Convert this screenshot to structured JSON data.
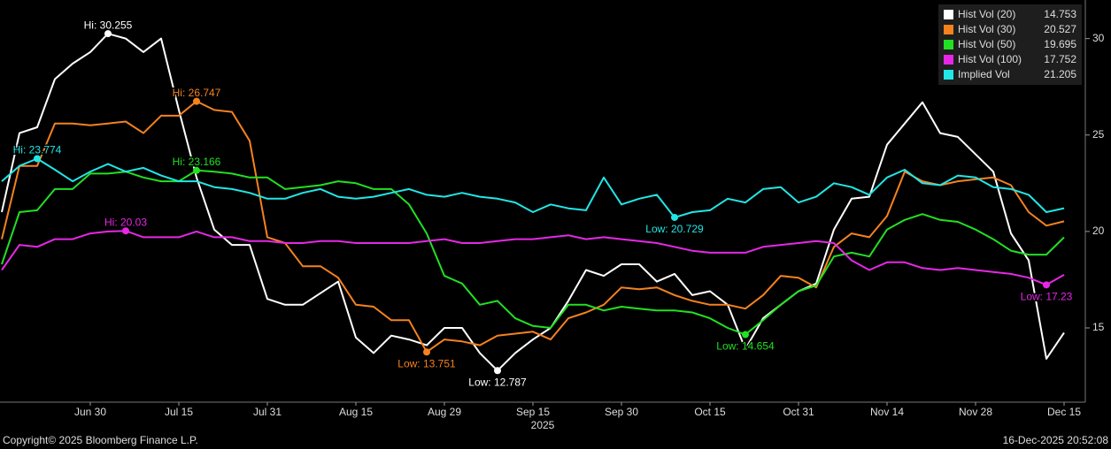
{
  "chart_data": {
    "type": "line",
    "categories": [
      null,
      null,
      null,
      null,
      null,
      "Jun 30",
      null,
      null,
      null,
      null,
      "Jul 15",
      null,
      null,
      null,
      null,
      "Jul 31",
      null,
      null,
      null,
      null,
      "Aug 15",
      null,
      null,
      null,
      null,
      "Aug 29",
      null,
      null,
      null,
      null,
      "Sep 15",
      null,
      null,
      null,
      null,
      "Sep 30",
      null,
      null,
      null,
      null,
      "Oct 15",
      null,
      null,
      null,
      null,
      "Oct 31",
      null,
      null,
      null,
      null,
      "Nov 14",
      null,
      null,
      null,
      null,
      "Nov 28",
      null,
      null,
      null,
      null,
      "Dec 15"
    ],
    "x_year_label": "2025",
    "ylim": [
      11.15,
      32.0
    ],
    "yticks": [
      15,
      20,
      25,
      30
    ],
    "legend": "top-right",
    "series": [
      {
        "name": "Hist Vol (20)",
        "color": "#ffffff",
        "values": [
          21.0,
          25.1,
          25.4,
          27.9,
          28.7,
          29.3,
          30.255,
          30.0,
          29.3,
          30.0,
          26.3,
          22.8,
          20.1,
          19.3,
          19.3,
          16.5,
          16.2,
          16.2,
          16.8,
          17.4,
          14.5,
          13.7,
          14.6,
          14.4,
          14.1,
          15.0,
          15.0,
          13.7,
          12.787,
          13.7,
          14.4,
          15.0,
          16.4,
          18.0,
          17.7,
          18.3,
          18.3,
          17.4,
          17.8,
          16.7,
          16.9,
          16.2,
          13.9,
          15.5,
          16.2,
          16.9,
          17.3,
          20.1,
          21.7,
          21.8,
          24.5,
          25.6,
          26.7,
          25.1,
          24.9,
          24.0,
          23.1,
          19.9,
          18.5,
          13.4,
          14.753
        ],
        "value_labels": [
          null,
          null,
          null,
          null,
          null,
          null,
          "Hi: 30.255",
          null,
          null,
          null,
          null,
          null,
          null,
          null,
          null,
          null,
          null,
          null,
          null,
          null,
          null,
          null,
          null,
          null,
          null,
          null,
          null,
          null,
          "Low: 12.787",
          null,
          null,
          null,
          null,
          null,
          null,
          null,
          null,
          null,
          null,
          null,
          null,
          null,
          null,
          null,
          null,
          null,
          null,
          null,
          null,
          null,
          null,
          null,
          null,
          null,
          null,
          null,
          null,
          null,
          null,
          null,
          null
        ]
      },
      {
        "name": "Hist Vol (30)",
        "color": "#f5821f",
        "values": [
          19.6,
          23.4,
          23.4,
          25.6,
          25.6,
          25.5,
          25.6,
          25.7,
          25.1,
          26.0,
          26.0,
          26.747,
          26.3,
          26.2,
          24.7,
          19.7,
          19.4,
          18.2,
          18.2,
          17.6,
          16.2,
          16.1,
          15.4,
          15.4,
          13.751,
          14.4,
          14.3,
          14.1,
          14.6,
          14.7,
          14.8,
          14.4,
          15.5,
          15.8,
          16.2,
          17.1,
          17.0,
          17.1,
          16.7,
          16.4,
          16.2,
          16.2,
          16.0,
          16.7,
          17.7,
          17.6,
          17.1,
          19.2,
          19.9,
          19.7,
          20.8,
          23.1,
          22.6,
          22.4,
          22.6,
          22.7,
          22.8,
          22.4,
          21.0,
          20.3,
          20.527
        ],
        "value_labels": [
          null,
          null,
          null,
          null,
          null,
          null,
          null,
          null,
          null,
          null,
          null,
          "Hi: 26.747",
          null,
          null,
          null,
          null,
          null,
          null,
          null,
          null,
          null,
          null,
          null,
          null,
          "Low: 13.751",
          null,
          null,
          null,
          null,
          null,
          null,
          null,
          null,
          null,
          null,
          null,
          null,
          null,
          null,
          null,
          null,
          null,
          null,
          null,
          null,
          null,
          null,
          null,
          null,
          null,
          null,
          null,
          null,
          null,
          null,
          null,
          null,
          null,
          null,
          null,
          null
        ]
      },
      {
        "name": "Hist Vol (50)",
        "color": "#22e022",
        "values": [
          18.3,
          21.0,
          21.1,
          22.2,
          22.2,
          23.0,
          23.0,
          23.1,
          22.8,
          22.6,
          22.6,
          23.166,
          23.1,
          23.0,
          22.8,
          22.8,
          22.2,
          22.3,
          22.4,
          22.6,
          22.5,
          22.2,
          22.2,
          21.4,
          19.9,
          17.7,
          17.3,
          16.2,
          16.4,
          15.5,
          15.1,
          15.0,
          16.2,
          16.2,
          15.9,
          16.1,
          16.0,
          15.9,
          15.9,
          15.8,
          15.5,
          15.0,
          14.654,
          15.4,
          16.2,
          16.9,
          17.2,
          18.7,
          18.9,
          18.7,
          20.1,
          20.6,
          20.9,
          20.6,
          20.5,
          20.1,
          19.6,
          19.0,
          18.8,
          18.8,
          19.695
        ],
        "value_labels": [
          null,
          null,
          null,
          null,
          null,
          null,
          null,
          null,
          null,
          null,
          null,
          "Hi: 23.166",
          null,
          null,
          null,
          null,
          null,
          null,
          null,
          null,
          null,
          null,
          null,
          null,
          null,
          null,
          null,
          null,
          null,
          null,
          null,
          null,
          null,
          null,
          null,
          null,
          null,
          null,
          null,
          null,
          null,
          null,
          "Low: 14.654",
          null,
          null,
          null,
          null,
          null,
          null,
          null,
          null,
          null,
          null,
          null,
          null,
          null,
          null,
          null,
          null,
          null,
          null
        ]
      },
      {
        "name": "Hist Vol (100)",
        "color": "#e628e6",
        "values": [
          18.0,
          19.3,
          19.2,
          19.6,
          19.6,
          19.9,
          20.0,
          20.03,
          19.7,
          19.7,
          19.7,
          20.0,
          19.7,
          19.7,
          19.5,
          19.5,
          19.4,
          19.4,
          19.5,
          19.5,
          19.4,
          19.4,
          19.4,
          19.4,
          19.5,
          19.6,
          19.4,
          19.4,
          19.5,
          19.6,
          19.6,
          19.7,
          19.8,
          19.6,
          19.7,
          19.6,
          19.5,
          19.4,
          19.2,
          19.0,
          18.9,
          18.9,
          18.9,
          19.2,
          19.3,
          19.4,
          19.5,
          19.4,
          18.5,
          18.0,
          18.4,
          18.4,
          18.1,
          18.0,
          18.1,
          18.0,
          17.9,
          17.8,
          17.6,
          17.23,
          17.752
        ],
        "value_labels": [
          null,
          null,
          null,
          null,
          null,
          null,
          null,
          "Hi: 20.03",
          null,
          null,
          null,
          null,
          null,
          null,
          null,
          null,
          null,
          null,
          null,
          null,
          null,
          null,
          null,
          null,
          null,
          null,
          null,
          null,
          null,
          null,
          null,
          null,
          null,
          null,
          null,
          null,
          null,
          null,
          null,
          null,
          null,
          null,
          null,
          null,
          null,
          null,
          null,
          null,
          null,
          null,
          null,
          null,
          null,
          null,
          null,
          null,
          null,
          null,
          null,
          "Low: 17.23",
          null
        ]
      },
      {
        "name": "Implied Vol",
        "color": "#22e6e6",
        "values": [
          22.6,
          23.4,
          23.774,
          23.2,
          22.6,
          23.1,
          23.5,
          23.1,
          23.3,
          22.9,
          22.6,
          22.6,
          22.3,
          22.2,
          22.0,
          21.7,
          21.7,
          22.0,
          22.2,
          21.8,
          21.7,
          21.8,
          22.0,
          22.2,
          21.9,
          21.8,
          22.0,
          21.8,
          21.7,
          21.5,
          21.0,
          21.4,
          21.2,
          21.1,
          22.8,
          21.4,
          21.7,
          21.9,
          20.729,
          21.0,
          21.1,
          21.7,
          21.5,
          22.2,
          22.3,
          21.5,
          21.8,
          22.5,
          22.3,
          21.9,
          22.8,
          23.2,
          22.5,
          22.4,
          22.9,
          22.8,
          22.3,
          22.2,
          21.9,
          21.0,
          21.205
        ],
        "value_labels": [
          null,
          null,
          "Hi: 23.774",
          null,
          null,
          null,
          null,
          null,
          null,
          null,
          null,
          null,
          null,
          null,
          null,
          null,
          null,
          null,
          null,
          null,
          null,
          null,
          null,
          null,
          null,
          null,
          null,
          null,
          null,
          null,
          null,
          null,
          null,
          null,
          null,
          null,
          null,
          null,
          "Low: 20.729",
          null,
          null,
          null,
          null,
          null,
          null,
          null,
          null,
          null,
          null,
          null,
          null,
          null,
          null,
          null,
          null,
          null,
          null,
          null,
          null,
          null,
          null
        ]
      }
    ],
    "footer_left": "Copyright© 2025 Bloomberg Finance L.P.",
    "footer_right": "16-Dec-2025 20:52:08"
  }
}
